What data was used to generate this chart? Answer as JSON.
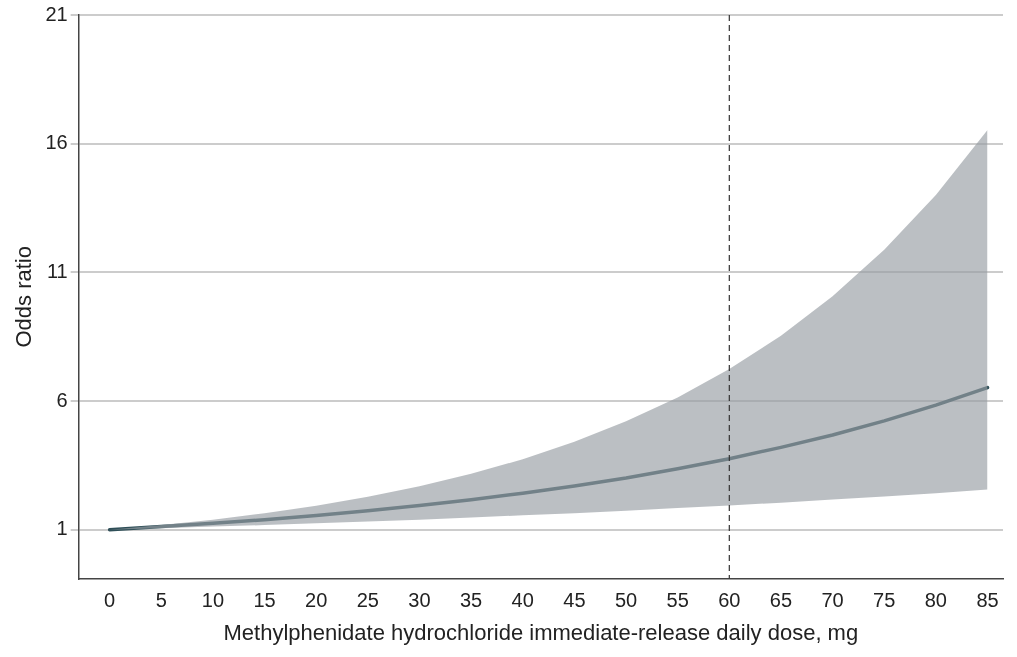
{
  "chart_data": {
    "type": "line",
    "xlabel": "Methylphenidate hydrochloride immediate-release daily dose, mg",
    "ylabel": "Odds ratio",
    "x": [
      0,
      5,
      10,
      15,
      20,
      25,
      30,
      35,
      40,
      45,
      50,
      55,
      60,
      65,
      70,
      75,
      80,
      85
    ],
    "series": [
      {
        "color": "#2f4f58",
        "values": [
          1,
          1.12,
          1.25,
          1.39,
          1.55,
          1.74,
          1.94,
          2.16,
          2.42,
          2.7,
          3.01,
          3.37,
          3.76,
          4.2,
          4.68,
          5.23,
          5.84,
          6.52
        ],
        "lower": [
          1,
          1.06,
          1.12,
          1.18,
          1.25,
          1.32,
          1.39,
          1.47,
          1.56,
          1.64,
          1.74,
          1.84,
          1.94,
          2.05,
          2.17,
          2.29,
          2.42,
          2.56
        ],
        "upper": [
          1,
          1.18,
          1.39,
          1.64,
          1.93,
          2.28,
          2.69,
          3.17,
          3.74,
          4.42,
          5.21,
          6.14,
          7.24,
          8.54,
          10.07,
          11.88,
          14.01,
          16.53
        ]
      }
    ],
    "xlim": [
      -3,
      86.5
    ],
    "ylim": [
      -0.9,
      21
    ],
    "xticks": [
      0,
      5,
      10,
      15,
      20,
      25,
      30,
      35,
      40,
      45,
      50,
      55,
      60,
      65,
      70,
      75,
      80,
      85
    ],
    "yticks": [
      1,
      6,
      11,
      16,
      21
    ],
    "grid": "y",
    "legend": false,
    "marker": "none",
    "line_style": "solid",
    "ref_lines": [
      {
        "axis": "x",
        "value": 60,
        "color": "#333333",
        "line_style": "dashed"
      }
    ]
  }
}
